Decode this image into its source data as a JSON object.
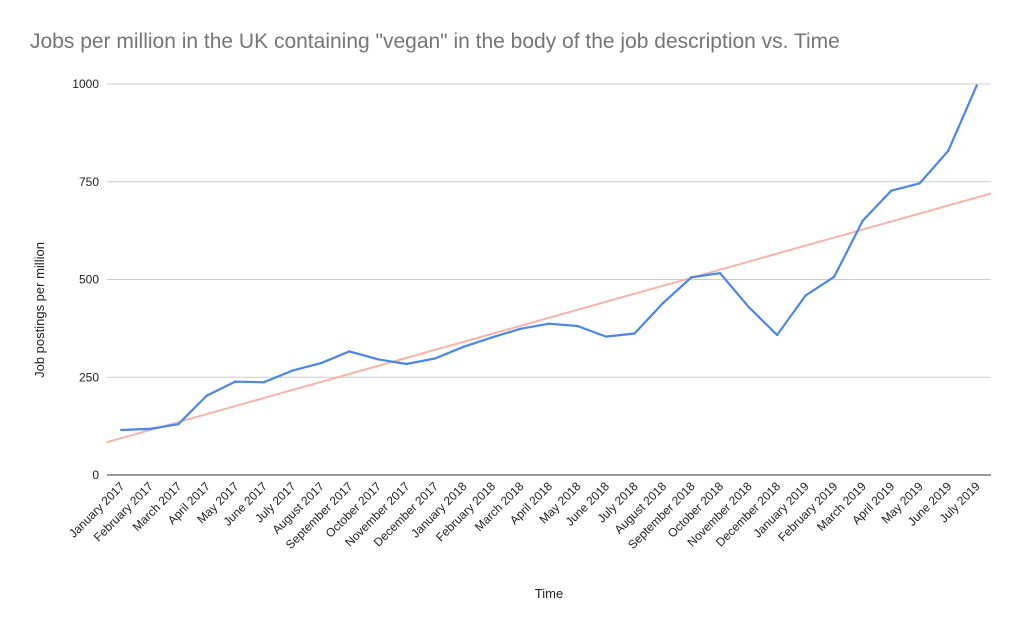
{
  "chart_data": {
    "type": "line",
    "title": "Jobs per million in the UK containing \"vegan\" in the body of the job description vs. Time",
    "xlabel": "Time",
    "ylabel": "Job postings per million",
    "ylim": [
      0,
      1000
    ],
    "yticks": [
      0,
      250,
      500,
      750,
      1000
    ],
    "grid": true,
    "categories": [
      "January 2017",
      "February 2017",
      "March 2017",
      "April 2017",
      "May 2017",
      "June 2017",
      "July 2017",
      "August 2017",
      "September 2017",
      "October 2017",
      "November 2017",
      "December 2017",
      "January 2018",
      "February 2018",
      "March 2018",
      "April 2018",
      "May 2018",
      "June 2018",
      "July 2018",
      "August 2018",
      "September 2018",
      "October 2018",
      "November 2018",
      "December 2018",
      "January 2019",
      "February 2019",
      "March 2019",
      "April 2019",
      "May 2019",
      "June 2019",
      "July 2019"
    ],
    "series": [
      {
        "color": "#4a86e8",
        "values": [
          115,
          118,
          130,
          203,
          239,
          237,
          267,
          286,
          316,
          296,
          284,
          298,
          328,
          352,
          374,
          387,
          381,
          354,
          362,
          440,
          506,
          516,
          430,
          358,
          459,
          507,
          650,
          727,
          746,
          829,
          996
        ]
      },
      {
        "color": "#f4b4a8",
        "trendline": [
          84,
          720
        ]
      }
    ]
  }
}
